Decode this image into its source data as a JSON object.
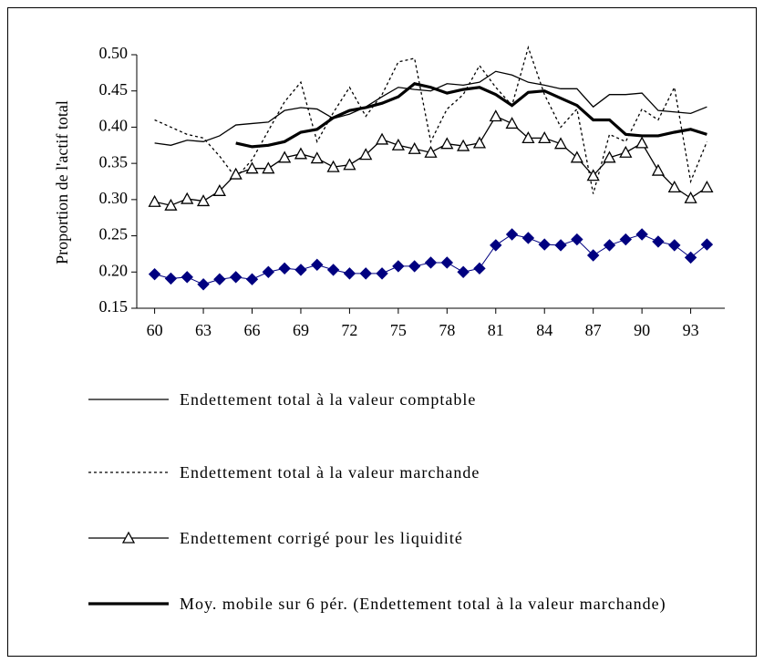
{
  "chart_data": {
    "type": "line",
    "y_label": "Proportion  de l'actif total",
    "x": [
      60,
      61,
      62,
      63,
      64,
      65,
      66,
      67,
      68,
      69,
      70,
      71,
      72,
      73,
      74,
      75,
      76,
      77,
      78,
      79,
      80,
      81,
      82,
      83,
      84,
      85,
      86,
      87,
      88,
      89,
      90,
      91,
      92,
      93,
      94
    ],
    "xlim": [
      58.9,
      95.1
    ],
    "xticks": [
      60,
      63,
      66,
      69,
      72,
      75,
      78,
      81,
      84,
      87,
      90,
      93
    ],
    "ylim": [
      0.15,
      0.5
    ],
    "yticks": [
      0.15,
      {
        "value": 0.2,
        "label": "0.20"
      },
      0.25,
      {
        "value": 0.3,
        "label": "0.30"
      },
      0.35,
      {
        "value": 0.4,
        "label": "0.40"
      },
      0.45,
      {
        "value": 0.5,
        "label": "0.50"
      }
    ],
    "series": [
      {
        "name": "Endettement total à la valeur comptable",
        "color": "#000000",
        "width": 1.3,
        "dash": false,
        "marker": "none",
        "values": [
          0.378,
          0.375,
          0.382,
          0.38,
          0.388,
          0.403,
          0.405,
          0.407,
          0.423,
          0.427,
          0.425,
          0.412,
          0.418,
          0.428,
          0.442,
          0.455,
          0.452,
          0.45,
          0.46,
          0.458,
          0.462,
          0.477,
          0.472,
          0.462,
          0.458,
          0.453,
          0.453,
          0.428,
          0.445,
          0.445,
          0.447,
          0.423,
          0.421,
          0.419,
          0.428
        ]
      },
      {
        "name": "Endettement total à la valeur marchande",
        "color": "#000000",
        "width": 1.3,
        "dash": true,
        "marker": "none",
        "values": [
          0.41,
          0.4,
          0.39,
          0.385,
          0.36,
          0.33,
          0.355,
          0.395,
          0.435,
          0.462,
          0.38,
          0.42,
          0.455,
          0.415,
          0.445,
          0.49,
          0.495,
          0.38,
          0.425,
          0.445,
          0.485,
          0.455,
          0.43,
          0.51,
          0.445,
          0.4,
          0.425,
          0.308,
          0.39,
          0.38,
          0.425,
          0.41,
          0.455,
          0.325,
          0.38
        ]
      },
      {
        "name": "Endettement corrigé pour les liquidité",
        "color": "#000000",
        "width": 1.3,
        "dash": false,
        "marker": "triangle",
        "values": [
          0.297,
          0.292,
          0.301,
          0.298,
          0.312,
          0.335,
          0.343,
          0.343,
          0.358,
          0.363,
          0.357,
          0.345,
          0.348,
          0.362,
          0.383,
          0.375,
          0.37,
          0.365,
          0.377,
          0.374,
          0.378,
          0.415,
          0.405,
          0.385,
          0.385,
          0.377,
          0.358,
          0.333,
          0.358,
          0.365,
          0.378,
          0.34,
          0.317,
          0.302,
          0.317
        ]
      },
      {
        "name": "Moy. mobile sur 6 pér. (Endettement total à la valeur marchande)",
        "color": "#000000",
        "width": 3.2,
        "dash": false,
        "marker": "none",
        "values": [
          null,
          null,
          null,
          null,
          null,
          0.378,
          0.373,
          0.375,
          0.38,
          0.393,
          0.397,
          0.413,
          0.423,
          0.427,
          0.433,
          0.442,
          0.46,
          0.455,
          0.447,
          0.452,
          0.455,
          0.445,
          0.43,
          0.448,
          0.45,
          0.44,
          0.43,
          0.41,
          0.41,
          0.39,
          0.388,
          0.388,
          0.393,
          0.397,
          0.39
        ]
      },
      {
        "color": "#000080",
        "width": 1,
        "dash": false,
        "marker": "diamond",
        "values": [
          0.197,
          0.191,
          0.193,
          0.183,
          0.19,
          0.193,
          0.19,
          0.2,
          0.205,
          0.203,
          0.21,
          0.203,
          0.198,
          0.198,
          0.198,
          0.208,
          0.208,
          0.213,
          0.213,
          0.2,
          0.205,
          0.237,
          0.252,
          0.247,
          0.238,
          0.237,
          0.245,
          0.223,
          0.237,
          0.245,
          0.252,
          0.242,
          0.237,
          0.22,
          0.238
        ]
      }
    ]
  }
}
